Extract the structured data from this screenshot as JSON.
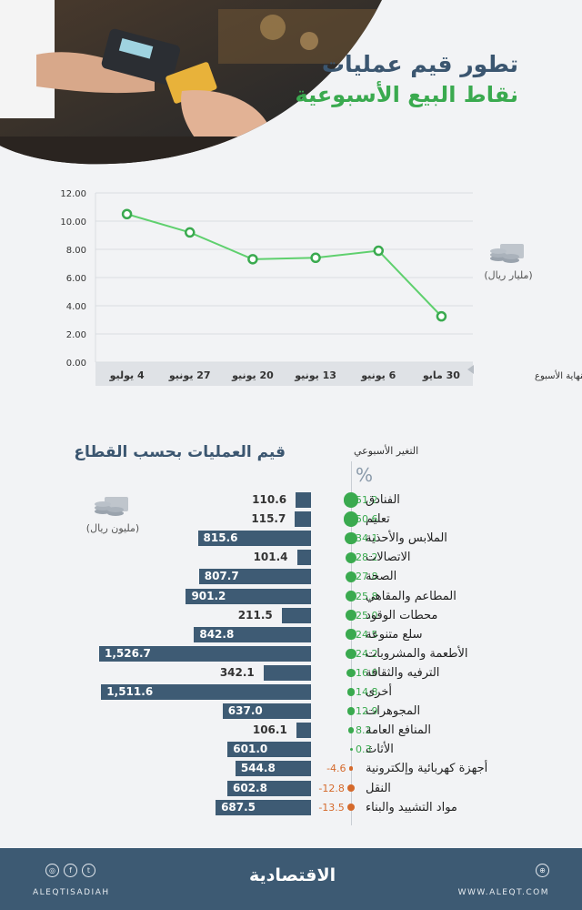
{
  "header": {
    "title_line1": "تطور قيم عمليات",
    "title_line2": "نقاط البيع الأسبوعية"
  },
  "line_unit": "(مليار ريال)",
  "bar_unit": "(مليون ريال)",
  "sector_title": "قيم العمليات بحسب القطاع",
  "weekly_change_title": "التغير الأسبوعي",
  "percent_sign": "%",
  "colors": {
    "navy": "#3d5a73",
    "green": "#3aaa4f",
    "orange": "#d56a2c"
  },
  "chart_data": [
    {
      "type": "line",
      "x": [
        "30 مايو",
        "6 يونيو",
        "13 يونيو",
        "20 يونيو",
        "27 يونيو",
        "4 يوليو"
      ],
      "values": [
        3.25,
        7.9,
        7.4,
        7.3,
        9.2,
        10.5
      ],
      "xlabel": "بنهاية الأسبوع",
      "yticks": [
        "0.00",
        "2.00",
        "4.00",
        "6.00",
        "8.00",
        "10.00",
        "12.00"
      ],
      "ylim": [
        0,
        12
      ],
      "grid": true,
      "x_direction": "right-to-left"
    },
    {
      "type": "bar",
      "orientation": "horizontal",
      "title": "قيم العمليات بحسب القطاع",
      "categories": [
        "الفنادق",
        "تعليم",
        "الملابس والأحذية",
        "الاتصالات",
        "الصحة",
        "المطاعم والمقاهي",
        "محطات الوقود",
        "سلع متنوعة",
        "الأطعمة والمشروبات",
        "الترفيه والثقافة",
        "أخرى",
        "المجوهرات",
        "المنافع العامة",
        "الأثاث",
        "أجهزة كهربائية وإلكترونية",
        "النقل",
        "مواد التشييد والبناء"
      ],
      "values": [
        110.6,
        115.7,
        815.6,
        101.4,
        807.7,
        901.2,
        211.5,
        842.8,
        1526.7,
        342.1,
        1511.6,
        637.0,
        106.1,
        601.0,
        544.8,
        602.8,
        687.5
      ],
      "value_labels": [
        "110.6",
        "115.7",
        "815.6",
        "101.4",
        "807.7",
        "901.2",
        "211.5",
        "842.8",
        "1,526.7",
        "342.1",
        "1,511.6",
        "637.0",
        "106.1",
        "601.0",
        "544.8",
        "602.8",
        "687.5"
      ],
      "weekly_change": [
        51.2,
        50.6,
        34.1,
        28.2,
        27.8,
        25.8,
        25.0,
        24.5,
        24.2,
        16.0,
        14.8,
        12.9,
        8.2,
        0.3,
        -4.6,
        -12.8,
        -13.5
      ],
      "weekly_change_labels": [
        "51.2",
        "50.6",
        "34.1",
        "28.2",
        "27.8",
        "25.8",
        "25.0",
        "24.5",
        "24.2",
        "16.0",
        "14.8",
        "12.9",
        "8.2",
        "0.3",
        "-4.6",
        "-12.8",
        "-13.5"
      ]
    }
  ],
  "footer": {
    "logo": "الاقتصادية",
    "handle": "ALEQTISADIAH",
    "website": "WWW.ALEQT.COM",
    "social_icons": [
      "instagram-icon",
      "facebook-icon",
      "twitter-icon",
      "web-icon"
    ]
  }
}
